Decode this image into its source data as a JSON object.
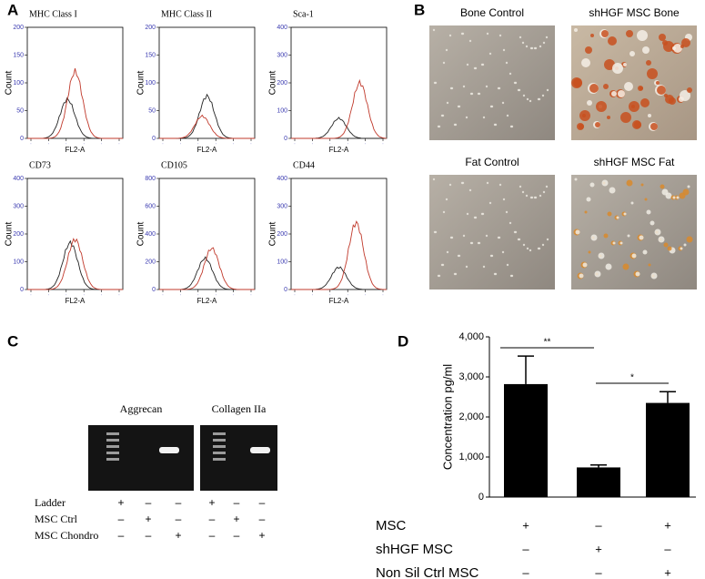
{
  "panel_labels": [
    "A",
    "B",
    "C",
    "D"
  ],
  "flow": {
    "x_label": "FL2-A",
    "y_label": "Count",
    "plots": [
      {
        "title": "MHC Class I",
        "ylim": [
          0,
          200
        ],
        "yticks": [
          0,
          50,
          100,
          150,
          200
        ]
      },
      {
        "title": "MHC Class II",
        "ylim": [
          0,
          200
        ],
        "yticks": [
          0,
          50,
          100,
          150,
          200
        ]
      },
      {
        "title": "Sca-1",
        "ylim": [
          0,
          400
        ],
        "yticks": [
          0,
          100,
          200,
          300,
          400
        ]
      },
      {
        "title": "CD73",
        "ylim": [
          0,
          400
        ],
        "yticks": [
          0,
          100,
          200,
          300,
          400
        ]
      },
      {
        "title": "CD105",
        "ylim": [
          0,
          800
        ],
        "yticks": [
          0,
          200,
          400,
          600,
          800
        ]
      },
      {
        "title": "CD44",
        "ylim": [
          0,
          400
        ],
        "yticks": [
          0,
          100,
          200,
          300,
          400
        ]
      }
    ]
  },
  "micrographs": {
    "captions": [
      "Bone Control",
      "shHGF MSC Bone",
      "Fat Control",
      "shHGF MSC Fat"
    ]
  },
  "gel": {
    "titles": [
      "Aggrecan",
      "Collagen IIa"
    ],
    "rows": [
      {
        "label": "Ladder",
        "marks": [
          "+",
          "–",
          "–",
          "+",
          "–",
          "–"
        ]
      },
      {
        "label": "MSC Ctrl",
        "marks": [
          "–",
          "+",
          "–",
          "–",
          "+",
          "–"
        ]
      },
      {
        "label": "MSC Chondro",
        "marks": [
          "–",
          "–",
          "+",
          "–",
          "–",
          "+"
        ]
      }
    ]
  },
  "chart_data": {
    "type": "bar",
    "y_label": "Concentration pg/ml",
    "categories": [
      null,
      null,
      null
    ],
    "values": [
      2820,
      740,
      2350
    ],
    "errors": [
      700,
      60,
      280
    ],
    "color": "#000000",
    "ylim": [
      0,
      4000
    ],
    "yticks": [
      0,
      {
        "value": 1000,
        "label": "1,000"
      },
      {
        "value": 2000,
        "label": "2,000"
      },
      {
        "value": 3000,
        "label": "3,000"
      },
      {
        "value": 4000,
        "label": "4,000"
      }
    ],
    "annotations": [
      {
        "label": "**"
      },
      {
        "label": "*"
      }
    ]
  },
  "treatment_table": {
    "rows": [
      {
        "label": "MSC",
        "marks": [
          "+",
          "–",
          "+"
        ]
      },
      {
        "label": "shHGF MSC",
        "marks": [
          "–",
          "+",
          "–"
        ]
      },
      {
        "label": "Non Sil Ctrl MSC",
        "marks": [
          "–",
          "–",
          "+"
        ]
      }
    ]
  }
}
